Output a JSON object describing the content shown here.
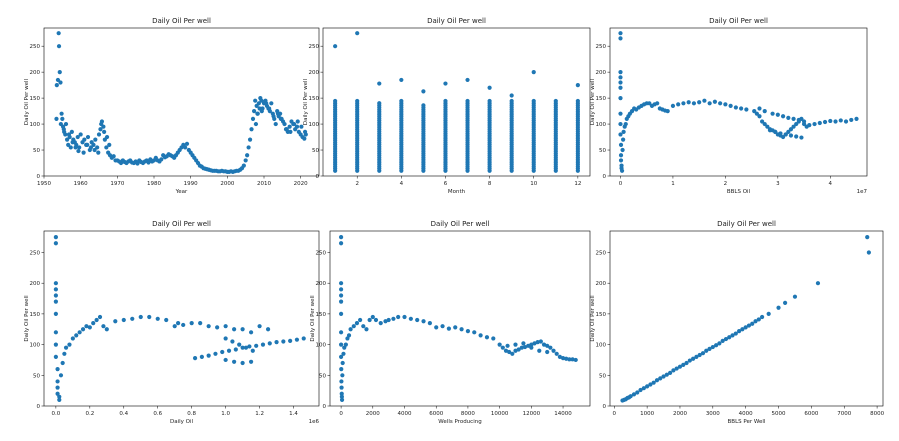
{
  "figure": {
    "marker_color": "#1f77b4"
  },
  "chart_data": [
    {
      "type": "scatter",
      "title": "Daily Oil Per well",
      "xlabel": "Year",
      "ylabel": "Daily Oil Per well",
      "xlim": [
        1950,
        2025
      ],
      "ylim": [
        0,
        285
      ],
      "xticks": [
        1950,
        1960,
        1970,
        1980,
        1990,
        2000,
        2010,
        2020
      ],
      "yticks": [
        0,
        50,
        100,
        150,
        200,
        250
      ],
      "offset_text": "",
      "x": [
        1953.5,
        1953.8,
        1954.0,
        1954.1,
        1954.3,
        1954.5,
        1954.8,
        1955.0,
        1955.2,
        1955.5,
        1955.8,
        1956.0,
        1956.3,
        1956.6,
        1957.0,
        1957.3,
        1957.6,
        1958.0,
        1958.4,
        1958.8,
        1959.2,
        1959.6,
        1960.0,
        1960.5,
        1961.0,
        1961.5,
        1962.0,
        1962.5,
        1963.0,
        1963.5,
        1964.0,
        1964.5,
        1965.0,
        1965.4,
        1965.8,
        1966.2,
        1966.6,
        1967.0,
        1967.5,
        1968.0,
        1968.5,
        1969.0,
        1969.5,
        1970.0,
        1970.5,
        1971.0,
        1971.5,
        1972.0,
        1972.5,
        1973.0,
        1973.5,
        1974.0,
        1974.5,
        1975.0,
        1975.5,
        1976.0,
        1976.5,
        1977.0,
        1977.5,
        1978.0,
        1978.5,
        1979.0,
        1979.5,
        1980.0,
        1980.5,
        1981.0,
        1981.5,
        1982.0,
        1982.5,
        1983.0,
        1983.5,
        1984.0,
        1984.5,
        1985.0,
        1985.5,
        1986.0,
        1986.5,
        1987.0,
        1987.5,
        1988.0,
        1988.5,
        1989.0,
        1989.5,
        1990.0,
        1990.5,
        1991.0,
        1991.5,
        1992.0,
        1992.5,
        1993.0,
        1993.5,
        1994.0,
        1994.5,
        1995.0,
        1995.5,
        1996.0,
        1996.5,
        1997.0,
        1997.5,
        1998.0,
        1998.5,
        1999.0,
        1999.5,
        2000.0,
        2000.5,
        2001.0,
        2001.5,
        2002.0,
        2002.5,
        2003.0,
        2003.5,
        2004.0,
        2004.5,
        2005.0,
        2005.4,
        2005.8,
        2006.2,
        2006.6,
        2007.0,
        2007.3,
        2007.6,
        2008.0,
        2008.3,
        2008.6,
        2009.0,
        2009.3,
        2009.6,
        2010.0,
        2010.4,
        2010.8,
        2011.2,
        2011.6,
        2012.0,
        2012.4,
        2012.8,
        2013.2,
        2013.6,
        2014.0,
        2014.4,
        2014.8,
        2015.2,
        2015.6,
        2016.0,
        2016.5,
        2017.0,
        2017.5,
        2018.0,
        2018.5,
        2019.0,
        2019.5,
        2020.0,
        2020.5,
        2021.0,
        2021.4
      ],
      "y": [
        175,
        185,
        275,
        250,
        200,
        180,
        120,
        110,
        95,
        85,
        80,
        100,
        70,
        60,
        75,
        55,
        85,
        70,
        65,
        60,
        75,
        55,
        80,
        65,
        70,
        60,
        75,
        50,
        65,
        60,
        70,
        55,
        80,
        90,
        105,
        95,
        70,
        55,
        45,
        40,
        35,
        38,
        30,
        30,
        28,
        25,
        30,
        27,
        25,
        28,
        30,
        26,
        25,
        28,
        24,
        30,
        27,
        25,
        28,
        30,
        26,
        32,
        28,
        30,
        35,
        30,
        28,
        32,
        40,
        36,
        38,
        42,
        40,
        38,
        35,
        40,
        45,
        50,
        55,
        60,
        55,
        62,
        50,
        45,
        40,
        35,
        30,
        25,
        20,
        18,
        15,
        14,
        13,
        12,
        11,
        10,
        10,
        10,
        9,
        9,
        10,
        9,
        9,
        8,
        8,
        9,
        8,
        9,
        10,
        10,
        12,
        15,
        20,
        30,
        40,
        55,
        70,
        90,
        110,
        125,
        145,
        135,
        120,
        140,
        150,
        145,
        130,
        140,
        145,
        135,
        130,
        125,
        140,
        120,
        110,
        100,
        125,
        115,
        120,
        110,
        105,
        100,
        90,
        85,
        95,
        105,
        100,
        90,
        95,
        85,
        80,
        75,
        72,
        80
      ],
      "extra_points": [
        [
          1953.4,
          110
        ],
        [
          1954.6,
          100
        ],
        [
          1955.4,
          90
        ],
        [
          1956.8,
          80
        ],
        [
          1957.8,
          65
        ],
        [
          1958.6,
          55
        ],
        [
          1959.4,
          48
        ],
        [
          1960.8,
          45
        ],
        [
          1961.8,
          60
        ],
        [
          1962.8,
          55
        ],
        [
          1963.8,
          50
        ],
        [
          1964.8,
          45
        ],
        [
          1965.6,
          100
        ],
        [
          1966.4,
          85
        ],
        [
          1967.2,
          75
        ],
        [
          1967.8,
          60
        ],
        [
          2007.8,
          100
        ],
        [
          2008.2,
          120
        ],
        [
          2008.8,
          130
        ],
        [
          2009.4,
          125
        ],
        [
          2010.6,
          140
        ],
        [
          2011.4,
          130
        ],
        [
          2012.6,
          115
        ],
        [
          2013.8,
          120
        ],
        [
          2014.6,
          110
        ],
        [
          2016.2,
          90
        ],
        [
          2017.2,
          85
        ],
        [
          2018.2,
          100
        ],
        [
          2019.2,
          105
        ],
        [
          2020.2,
          95
        ],
        [
          2021.2,
          85
        ]
      ]
    },
    {
      "type": "scatter",
      "title": "Daily Oil Per well",
      "xlabel": "Month",
      "ylabel": "Daily Oil Per well",
      "xlim": [
        0.45,
        12.55
      ],
      "ylim": [
        0,
        285
      ],
      "xticks": [
        2,
        4,
        6,
        8,
        10,
        12
      ],
      "yticks": [
        0,
        50,
        100,
        150,
        200,
        250
      ],
      "offset_text": "",
      "columns": [
        {
          "month": 1,
          "min": 10,
          "max": 145,
          "outliers": [
            250
          ]
        },
        {
          "month": 2,
          "min": 10,
          "max": 145,
          "outliers": [
            275
          ]
        },
        {
          "month": 3,
          "min": 10,
          "max": 142,
          "outliers": [
            178
          ]
        },
        {
          "month": 4,
          "min": 10,
          "max": 145,
          "outliers": [
            185
          ]
        },
        {
          "month": 5,
          "min": 10,
          "max": 140,
          "outliers": [
            163
          ]
        },
        {
          "month": 6,
          "min": 10,
          "max": 145,
          "outliers": [
            178
          ]
        },
        {
          "month": 7,
          "min": 10,
          "max": 145,
          "outliers": [
            185
          ]
        },
        {
          "month": 8,
          "min": 10,
          "max": 145,
          "outliers": [
            170
          ]
        },
        {
          "month": 9,
          "min": 10,
          "max": 145,
          "outliers": [
            155
          ]
        },
        {
          "month": 10,
          "min": 10,
          "max": 145,
          "outliers": [
            200
          ]
        },
        {
          "month": 11,
          "min": 10,
          "max": 148,
          "outliers": []
        },
        {
          "month": 12,
          "min": 10,
          "max": 148,
          "outliers": [
            175
          ]
        }
      ]
    },
    {
      "type": "scatter",
      "title": "Daily Oil Per well",
      "xlabel": "BBLS Oil",
      "ylabel": "Daily Oil Per well",
      "xlim": [
        -0.2,
        4.7
      ],
      "ylim": [
        0,
        285
      ],
      "xticks": [
        0,
        1,
        2,
        3,
        4
      ],
      "yticks": [
        0,
        50,
        100,
        150,
        200,
        250
      ],
      "offset_text": "1e7",
      "x": [
        0.0,
        0.0,
        0.0,
        0.0,
        0.0,
        0.0,
        0.0,
        0.0,
        0.0,
        0.0,
        0.01,
        0.01,
        0.01,
        0.02,
        0.02,
        0.03,
        0.04,
        0.05,
        0.06,
        0.08,
        0.1,
        0.12,
        0.15,
        0.18,
        0.22,
        0.26,
        0.3,
        0.35,
        0.4,
        0.45,
        0.5,
        0.55,
        0.6,
        0.65,
        0.7,
        0.75,
        0.8,
        0.85,
        0.9,
        1.0,
        1.1,
        1.2,
        1.3,
        1.4,
        1.5,
        1.6,
        1.7,
        1.8,
        1.9,
        2.0,
        2.1,
        2.2,
        2.3,
        2.4,
        2.55,
        2.6,
        2.65,
        2.7,
        2.75,
        2.8,
        2.85,
        2.9,
        2.95,
        3.0,
        3.05,
        3.1,
        3.15,
        3.2,
        3.25,
        3.3,
        3.35,
        3.4,
        3.45,
        3.5,
        3.55,
        3.6,
        3.7,
        3.8,
        3.9,
        4.0,
        4.1,
        4.2,
        4.3,
        4.4,
        4.5,
        2.65,
        2.75,
        2.9,
        3.0,
        3.1,
        3.2,
        3.3,
        3.4,
        3.5,
        2.85,
        2.95,
        3.05,
        3.15,
        3.25,
        3.35,
        3.45
      ],
      "y": [
        275,
        265,
        200,
        190,
        180,
        170,
        150,
        120,
        100,
        80,
        60,
        40,
        30,
        20,
        15,
        10,
        50,
        70,
        85,
        95,
        100,
        110,
        115,
        120,
        125,
        130,
        128,
        132,
        135,
        138,
        140,
        140,
        135,
        138,
        140,
        130,
        128,
        126,
        125,
        135,
        138,
        140,
        142,
        140,
        142,
        145,
        140,
        143,
        140,
        138,
        135,
        132,
        130,
        128,
        125,
        120,
        115,
        105,
        100,
        95,
        90,
        88,
        85,
        80,
        78,
        75,
        80,
        85,
        90,
        95,
        100,
        105,
        110,
        100,
        95,
        98,
        100,
        102,
        104,
        106,
        105,
        107,
        105,
        108,
        110,
        130,
        125,
        120,
        118,
        115,
        112,
        110,
        108,
        105,
        88,
        85,
        82,
        80,
        78,
        76,
        74
      ]
    },
    {
      "type": "scatter",
      "title": "Daily Oil Per well",
      "xlabel": "Daily Oil",
      "ylabel": "Daily Oil Per well",
      "xlim": [
        -0.07,
        1.55
      ],
      "ylim": [
        0,
        285
      ],
      "xticks": [
        0.0,
        0.2,
        0.4,
        0.6,
        0.8,
        1.0,
        1.2,
        1.4
      ],
      "yticks": [
        0,
        50,
        100,
        150,
        200,
        250
      ],
      "offset_text": "1e6",
      "x": [
        0.0,
        0.0,
        0.0,
        0.0,
        0.0,
        0.0,
        0.0,
        0.0,
        0.0,
        0.0,
        0.01,
        0.01,
        0.01,
        0.01,
        0.02,
        0.02,
        0.03,
        0.04,
        0.05,
        0.06,
        0.08,
        0.1,
        0.12,
        0.14,
        0.16,
        0.18,
        0.2,
        0.22,
        0.24,
        0.26,
        0.28,
        0.3,
        0.35,
        0.4,
        0.45,
        0.5,
        0.55,
        0.6,
        0.65,
        0.7,
        0.72,
        0.75,
        0.8,
        0.85,
        0.9,
        0.95,
        1.0,
        1.05,
        1.1,
        1.15,
        1.2,
        1.25,
        0.82,
        0.86,
        0.9,
        0.94,
        0.98,
        1.02,
        1.06,
        1.1,
        1.14,
        1.18,
        1.22,
        1.26,
        1.3,
        1.34,
        1.38,
        1.42,
        1.46,
        1.0,
        1.04,
        1.08,
        1.12,
        1.16,
        1.0,
        1.05,
        1.1,
        1.15
      ],
      "y": [
        275,
        265,
        200,
        190,
        180,
        170,
        150,
        120,
        100,
        80,
        60,
        40,
        30,
        20,
        15,
        10,
        50,
        70,
        85,
        95,
        100,
        110,
        115,
        120,
        125,
        130,
        128,
        135,
        140,
        145,
        130,
        125,
        138,
        140,
        142,
        145,
        145,
        142,
        140,
        130,
        135,
        132,
        135,
        135,
        130,
        128,
        130,
        125,
        125,
        120,
        130,
        125,
        78,
        80,
        82,
        85,
        88,
        90,
        92,
        95,
        97,
        98,
        100,
        102,
        104,
        105,
        106,
        108,
        110,
        110,
        105,
        100,
        95,
        90,
        75,
        72,
        70,
        72
      ],
      "extra_points": []
    },
    {
      "type": "scatter",
      "title": "Daily Oil Per well",
      "xlabel": "Wells Producing",
      "ylabel": "Daily Oil Per well",
      "xlim": [
        -700,
        15700
      ],
      "ylim": [
        0,
        285
      ],
      "xticks": [
        0,
        2000,
        4000,
        6000,
        8000,
        10000,
        12000,
        14000
      ],
      "yticks": [
        0,
        50,
        100,
        150,
        200,
        250
      ],
      "offset_text": "",
      "x": [
        0,
        0,
        0,
        0,
        0,
        0,
        0,
        0,
        0,
        0,
        10,
        20,
        30,
        40,
        50,
        60,
        80,
        100,
        150,
        200,
        300,
        400,
        500,
        600,
        800,
        1000,
        1200,
        1400,
        1600,
        1800,
        2000,
        2200,
        2500,
        2800,
        3000,
        3300,
        3600,
        4000,
        4400,
        4800,
        5200,
        5600,
        6000,
        6400,
        6800,
        7200,
        7600,
        8000,
        8400,
        8800,
        9200,
        9600,
        10000,
        10200,
        10400,
        10600,
        10800,
        11000,
        11200,
        11400,
        11600,
        11800,
        12000,
        12200,
        12400,
        12600,
        12800,
        13000,
        13200,
        13400,
        13600,
        13800,
        14000,
        14200,
        14400,
        14600,
        14800,
        10500,
        11000,
        11500,
        12000,
        12500,
        13000
      ],
      "y": [
        275,
        265,
        200,
        190,
        180,
        170,
        150,
        120,
        100,
        80,
        60,
        40,
        30,
        20,
        15,
        10,
        50,
        70,
        85,
        95,
        100,
        110,
        115,
        125,
        130,
        135,
        140,
        130,
        125,
        140,
        145,
        140,
        135,
        138,
        140,
        142,
        145,
        145,
        142,
        140,
        138,
        135,
        128,
        130,
        126,
        128,
        125,
        122,
        120,
        115,
        112,
        110,
        100,
        95,
        90,
        88,
        85,
        90,
        92,
        95,
        96,
        98,
        100,
        102,
        104,
        105,
        100,
        98,
        95,
        90,
        85,
        80,
        78,
        77,
        76,
        76,
        75,
        98,
        100,
        102,
        95,
        90,
        88
      ]
    },
    {
      "type": "scatter",
      "title": "Daily Oil Per well",
      "xlabel": "BBLS Per Well",
      "ylabel": "Daily Oil Per well",
      "xlim": [
        -130,
        8180
      ],
      "ylim": [
        0,
        285
      ],
      "xticks": [
        0,
        1000,
        2000,
        3000,
        4000,
        5000,
        6000,
        7000,
        8000
      ],
      "yticks": [
        0,
        50,
        100,
        150,
        200,
        250
      ],
      "offset_text": "",
      "x": [
        250,
        300,
        350,
        400,
        450,
        500,
        600,
        700,
        800,
        900,
        1000,
        1100,
        1200,
        1300,
        1400,
        1500,
        1600,
        1700,
        1800,
        1900,
        2000,
        2100,
        2200,
        2300,
        2400,
        2500,
        2600,
        2700,
        2800,
        2900,
        3000,
        3100,
        3200,
        3300,
        3400,
        3500,
        3600,
        3700,
        3800,
        3900,
        4000,
        4100,
        4200,
        4300,
        4400,
        4500,
        4700,
        5000,
        5200,
        5500,
        6200,
        7700,
        7750
      ],
      "y": [
        9,
        10,
        11,
        13,
        14,
        16,
        19,
        22,
        26,
        29,
        32,
        35,
        38,
        42,
        45,
        48,
        51,
        54,
        58,
        61,
        64,
        67,
        70,
        74,
        77,
        80,
        83,
        86,
        90,
        93,
        96,
        99,
        102,
        106,
        109,
        112,
        115,
        118,
        122,
        125,
        128,
        131,
        134,
        138,
        141,
        145,
        150,
        160,
        168,
        178,
        200,
        275,
        250
      ]
    }
  ]
}
